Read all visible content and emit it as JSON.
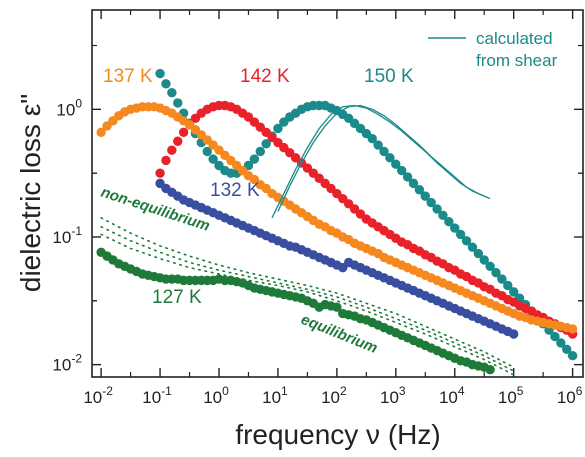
{
  "chart_data": {
    "type": "scatter",
    "title": "",
    "xlabel": "frequency ν (Hz)",
    "ylabel": "dielectric loss ε\"",
    "x_scale": "log",
    "y_scale": "log",
    "xlim": [
      0.007,
      1500000
    ],
    "ylim": [
      0.008,
      6
    ],
    "x_ticks": [
      {
        "value": 0.01,
        "base": "10",
        "exp": "-2"
      },
      {
        "value": 0.1,
        "base": "10",
        "exp": "-1"
      },
      {
        "value": 1,
        "base": "10",
        "exp": "0"
      },
      {
        "value": 10,
        "base": "10",
        "exp": "1"
      },
      {
        "value": 100,
        "base": "10",
        "exp": "2"
      },
      {
        "value": 1000,
        "base": "10",
        "exp": "3"
      },
      {
        "value": 10000,
        "base": "10",
        "exp": "4"
      },
      {
        "value": 100000,
        "base": "10",
        "exp": "5"
      },
      {
        "value": 1000000,
        "base": "10",
        "exp": "6"
      }
    ],
    "y_ticks": [
      {
        "value": 0.01,
        "base": "10",
        "exp": "-2"
      },
      {
        "value": 0.1,
        "base": "10",
        "exp": "-1"
      },
      {
        "value": 1,
        "base": "10",
        "exp": "0"
      }
    ],
    "grid": false,
    "series": [
      {
        "name": "150 K",
        "color": "#1a8a8a",
        "x_log": [
          -1,
          -0.9,
          -0.8,
          -0.7,
          -0.6,
          -0.5,
          -0.4,
          -0.3,
          -0.2,
          -0.1,
          0,
          0.1,
          0.2,
          0.3,
          0.4,
          0.5,
          0.6,
          0.7,
          0.8,
          0.9,
          1,
          1.1,
          1.2,
          1.3,
          1.4,
          1.5,
          1.6,
          1.7,
          1.8,
          1.9,
          2,
          2.1,
          2.2,
          2.3,
          2.4,
          2.5,
          2.6,
          2.7,
          2.8,
          2.9,
          3,
          3.1,
          3.2,
          3.3,
          3.4,
          3.5,
          3.6,
          3.7,
          3.8,
          3.9,
          4,
          4.1,
          4.2,
          4.3,
          4.4,
          4.5,
          4.6,
          4.7,
          4.8,
          4.9,
          5,
          5.1,
          5.2,
          5.3,
          5.4,
          5.5,
          5.6,
          5.7,
          5.8,
          5.9,
          6
        ],
        "y_log": [
          0.28,
          0.2,
          0.13,
          0.05,
          -0.03,
          -0.11,
          -0.19,
          -0.26,
          -0.33,
          -0.39,
          -0.44,
          -0.48,
          -0.5,
          -0.5,
          -0.48,
          -0.44,
          -0.39,
          -0.33,
          -0.27,
          -0.21,
          -0.15,
          -0.1,
          -0.06,
          -0.03,
          0,
          0.02,
          0.03,
          0.03,
          0.03,
          0.01,
          -0.01,
          -0.04,
          -0.07,
          -0.11,
          -0.15,
          -0.19,
          -0.23,
          -0.28,
          -0.33,
          -0.38,
          -0.43,
          -0.48,
          -0.53,
          -0.58,
          -0.63,
          -0.68,
          -0.73,
          -0.78,
          -0.83,
          -0.88,
          -0.93,
          -0.98,
          -1.03,
          -1.08,
          -1.13,
          -1.18,
          -1.23,
          -1.28,
          -1.33,
          -1.38,
          -1.43,
          -1.48,
          -1.53,
          -1.58,
          -1.63,
          -1.68,
          -1.73,
          -1.78,
          -1.83,
          -1.88,
          -1.93
        ]
      },
      {
        "name": "142 K",
        "color": "#e8212b",
        "x_log": [
          -1,
          -0.9,
          -0.8,
          -0.7,
          -0.6,
          -0.5,
          -0.4,
          -0.3,
          -0.2,
          -0.1,
          0,
          0.1,
          0.2,
          0.3,
          0.4,
          0.5,
          0.6,
          0.7,
          0.8,
          0.9,
          1,
          1.1,
          1.2,
          1.3,
          1.4,
          1.5,
          1.6,
          1.7,
          1.8,
          1.9,
          2,
          2.1,
          2.2,
          2.3,
          2.4,
          2.5,
          2.6,
          2.7,
          2.8,
          2.9,
          3,
          3.1,
          3.2,
          3.3,
          3.4,
          3.5,
          3.6,
          3.7,
          3.8,
          3.9,
          4,
          4.1,
          4.2,
          4.3,
          4.4,
          4.5,
          4.6,
          4.7,
          4.8,
          4.9,
          5,
          5.1,
          5.2,
          5.3,
          5.4,
          5.5,
          5.6,
          5.7,
          5.8,
          5.9,
          6
        ],
        "y_log": [
          -0.5,
          -0.4,
          -0.32,
          -0.25,
          -0.18,
          -0.12,
          -0.07,
          -0.03,
          0,
          0.02,
          0.03,
          0.03,
          0.02,
          0,
          -0.03,
          -0.06,
          -0.1,
          -0.14,
          -0.18,
          -0.22,
          -0.26,
          -0.3,
          -0.34,
          -0.38,
          -0.42,
          -0.46,
          -0.5,
          -0.54,
          -0.58,
          -0.62,
          -0.66,
          -0.7,
          -0.74,
          -0.78,
          -0.82,
          -0.86,
          -0.89,
          -0.92,
          -0.95,
          -0.98,
          -1.01,
          -1.04,
          -1.06,
          -1.09,
          -1.11,
          -1.14,
          -1.16,
          -1.19,
          -1.21,
          -1.24,
          -1.26,
          -1.29,
          -1.31,
          -1.34,
          -1.36,
          -1.39,
          -1.41,
          -1.44,
          -1.46,
          -1.49,
          -1.51,
          -1.54,
          -1.56,
          -1.58,
          -1.61,
          -1.63,
          -1.66,
          -1.68,
          -1.71,
          -1.73,
          -1.76
        ]
      },
      {
        "name": "137 K",
        "color": "#f5891f",
        "x_log": [
          -2,
          -1.9,
          -1.8,
          -1.7,
          -1.6,
          -1.5,
          -1.4,
          -1.3,
          -1.2,
          -1.1,
          -1,
          -0.9,
          -0.8,
          -0.7,
          -0.6,
          -0.5,
          -0.4,
          -0.3,
          -0.2,
          -0.1,
          0,
          0.1,
          0.2,
          0.3,
          0.4,
          0.5,
          0.6,
          0.7,
          0.8,
          0.9,
          1,
          1.1,
          1.2,
          1.3,
          1.4,
          1.5,
          1.6,
          1.7,
          1.8,
          1.9,
          2,
          2.1,
          2.2,
          2.3,
          2.4,
          2.5,
          2.6,
          2.7,
          2.8,
          2.9,
          3,
          3.1,
          3.2,
          3.3,
          3.4,
          3.5,
          3.6,
          3.7,
          3.8,
          3.9,
          4,
          4.1,
          4.2,
          4.3,
          4.4,
          4.5,
          4.6,
          4.7,
          4.8,
          4.9,
          5,
          5.1,
          5.2,
          5.3,
          5.4,
          5.5,
          5.6,
          5.7,
          5.8,
          5.9,
          6
        ],
        "y_log": [
          -0.18,
          -0.13,
          -0.09,
          -0.05,
          -0.02,
          0,
          0.01,
          0.02,
          0.02,
          0.02,
          0.01,
          -0.01,
          -0.03,
          -0.06,
          -0.09,
          -0.12,
          -0.16,
          -0.2,
          -0.24,
          -0.28,
          -0.32,
          -0.36,
          -0.4,
          -0.44,
          -0.48,
          -0.52,
          -0.55,
          -0.59,
          -0.62,
          -0.66,
          -0.69,
          -0.72,
          -0.75,
          -0.78,
          -0.81,
          -0.84,
          -0.87,
          -0.9,
          -0.92,
          -0.95,
          -0.97,
          -1,
          -1.02,
          -1.05,
          -1.07,
          -1.09,
          -1.11,
          -1.13,
          -1.16,
          -1.18,
          -1.2,
          -1.22,
          -1.24,
          -1.26,
          -1.28,
          -1.3,
          -1.32,
          -1.34,
          -1.36,
          -1.38,
          -1.4,
          -1.42,
          -1.44,
          -1.46,
          -1.48,
          -1.5,
          -1.52,
          -1.54,
          -1.56,
          -1.58,
          -1.6,
          -1.62,
          -1.63,
          -1.65,
          -1.66,
          -1.67,
          -1.68,
          -1.69,
          -1.7,
          -1.71,
          -1.72
        ]
      },
      {
        "name": "132 K",
        "color": "#3a4ea0",
        "x_log": [
          -1,
          -0.9,
          -0.8,
          -0.7,
          -0.6,
          -0.5,
          -0.4,
          -0.3,
          -0.2,
          -0.1,
          0,
          0.1,
          0.2,
          0.3,
          0.4,
          0.5,
          0.6,
          0.7,
          0.8,
          0.9,
          1,
          1.1,
          1.2,
          1.3,
          1.4,
          1.5,
          1.6,
          1.7,
          1.8,
          1.9,
          2,
          2.1,
          2.2,
          2.3,
          2.4,
          2.5,
          2.6,
          2.7,
          2.8,
          2.9,
          3,
          3.1,
          3.2,
          3.3,
          3.4,
          3.5,
          3.6,
          3.7,
          3.8,
          3.9,
          4,
          4.1,
          4.2,
          4.3,
          4.4,
          4.5,
          4.6,
          4.7,
          4.8,
          4.9,
          5
        ],
        "y_log": [
          -0.58,
          -0.62,
          -0.65,
          -0.68,
          -0.71,
          -0.73,
          -0.75,
          -0.77,
          -0.79,
          -0.81,
          -0.83,
          -0.85,
          -0.87,
          -0.89,
          -0.91,
          -0.93,
          -0.95,
          -0.97,
          -0.99,
          -1.01,
          -1.03,
          -1.05,
          -1.07,
          -1.08,
          -1.1,
          -1.12,
          -1.14,
          -1.16,
          -1.18,
          -1.2,
          -1.22,
          -1.24,
          -1.2,
          -1.22,
          -1.24,
          -1.26,
          -1.28,
          -1.3,
          -1.32,
          -1.34,
          -1.36,
          -1.38,
          -1.4,
          -1.42,
          -1.44,
          -1.46,
          -1.48,
          -1.5,
          -1.52,
          -1.54,
          -1.56,
          -1.58,
          -1.6,
          -1.62,
          -1.64,
          -1.66,
          -1.68,
          -1.7,
          -1.72,
          -1.74,
          -1.76
        ]
      },
      {
        "name": "127 K",
        "color": "#1f7a3a",
        "x_log": [
          -2,
          -1.9,
          -1.8,
          -1.7,
          -1.6,
          -1.5,
          -1.4,
          -1.3,
          -1.2,
          -1.1,
          -1,
          -0.9,
          -0.8,
          -0.7,
          -0.6,
          -0.5,
          -0.4,
          -0.3,
          -0.2,
          -0.1,
          0,
          0.1,
          0.2,
          0.3,
          0.4,
          0.5,
          0.6,
          0.7,
          0.8,
          0.9,
          1,
          1.1,
          1.2,
          1.3,
          1.4,
          1.5,
          1.6,
          1.7,
          1.8,
          1.9,
          2,
          2.1,
          2.2,
          2.3,
          2.4,
          2.5,
          2.6,
          2.7,
          2.8,
          2.9,
          3,
          3.1,
          3.2,
          3.3,
          3.4,
          3.5,
          3.6,
          3.7,
          3.8,
          3.9,
          4,
          4.1,
          4.2,
          4.3,
          4.4,
          4.5,
          4.6
        ],
        "y_log": [
          -1.12,
          -1.15,
          -1.18,
          -1.21,
          -1.23,
          -1.25,
          -1.27,
          -1.29,
          -1.3,
          -1.31,
          -1.32,
          -1.33,
          -1.33,
          -1.33,
          -1.34,
          -1.34,
          -1.34,
          -1.34,
          -1.34,
          -1.34,
          -1.33,
          -1.34,
          -1.34,
          -1.35,
          -1.36,
          -1.38,
          -1.4,
          -1.41,
          -1.42,
          -1.43,
          -1.44,
          -1.45,
          -1.46,
          -1.47,
          -1.48,
          -1.5,
          -1.52,
          -1.55,
          -1.53,
          -1.54,
          -1.55,
          -1.6,
          -1.61,
          -1.62,
          -1.64,
          -1.65,
          -1.67,
          -1.69,
          -1.71,
          -1.73,
          -1.75,
          -1.77,
          -1.79,
          -1.81,
          -1.83,
          -1.85,
          -1.87,
          -1.89,
          -1.91,
          -1.93,
          -1.95,
          -1.97,
          -1.98,
          -2,
          -2.01,
          -2.02,
          -2.04
        ]
      }
    ],
    "calculated_from_shear": {
      "name": "calculated from shear",
      "color": "#1a8a8a",
      "lines": [
        {
          "x_log": [
            0.9,
            1.1,
            1.3,
            1.5,
            1.7,
            1.9,
            2.1,
            2.3,
            2.5,
            2.7,
            2.9,
            3.1,
            3.3,
            3.5,
            3.7,
            3.9,
            4.1,
            4.3,
            4.5,
            4.6
          ],
          "y_log": [
            -0.85,
            -0.66,
            -0.47,
            -0.3,
            -0.15,
            -0.04,
            0.02,
            0.03,
            0.01,
            -0.04,
            -0.1,
            -0.17,
            -0.25,
            -0.33,
            -0.42,
            -0.5,
            -0.58,
            -0.64,
            -0.68,
            -0.7
          ]
        },
        {
          "x_log": [
            1.0,
            1.2,
            1.4,
            1.6,
            1.8,
            2.0,
            2.2,
            2.4,
            2.6,
            2.8,
            3.0,
            3.2,
            3.4,
            3.6,
            3.8,
            4.0,
            4.2,
            4.4,
            4.5
          ],
          "y_log": [
            -0.8,
            -0.6,
            -0.42,
            -0.26,
            -0.13,
            -0.03,
            0.02,
            0.03,
            0.0,
            -0.05,
            -0.12,
            -0.2,
            -0.28,
            -0.37,
            -0.45,
            -0.53,
            -0.61,
            -0.66,
            -0.68
          ]
        }
      ]
    },
    "dotted_guides": {
      "non_equilibrium": {
        "color": "#1f7a3a",
        "lines": [
          {
            "x_log": [
              -2,
              -1.5,
              -1,
              -0.5,
              0,
              0.5,
              1,
              1.5,
              2,
              2.5,
              3,
              3.5,
              4,
              4.5,
              5
            ],
            "y_log": [
              -0.85,
              -0.97,
              -1.07,
              -1.15,
              -1.22,
              -1.28,
              -1.33,
              -1.38,
              -1.44,
              -1.52,
              -1.6,
              -1.7,
              -1.8,
              -1.9,
              -2.02
            ]
          },
          {
            "x_log": [
              -2,
              -1.5,
              -1,
              -0.5,
              0,
              0.5,
              1,
              1.5,
              2,
              2.5,
              3,
              3.5,
              4,
              4.5,
              5
            ],
            "y_log": [
              -0.92,
              -1.03,
              -1.12,
              -1.2,
              -1.26,
              -1.31,
              -1.36,
              -1.41,
              -1.47,
              -1.55,
              -1.64,
              -1.73,
              -1.83,
              -1.93,
              -2.05
            ]
          },
          {
            "x_log": [
              -2,
              -1.5,
              -1,
              -0.5,
              0,
              0.5,
              1,
              1.5,
              2,
              2.5,
              3,
              3.5,
              4,
              4.5,
              5
            ],
            "y_log": [
              -0.98,
              -1.09,
              -1.17,
              -1.24,
              -1.29,
              -1.34,
              -1.38,
              -1.43,
              -1.5,
              -1.58,
              -1.67,
              -1.76,
              -1.86,
              -1.96,
              -2.08
            ]
          }
        ]
      }
    },
    "annotations": {
      "non_equilibrium": "non-equilibrium",
      "equilibrium": "equilibrium"
    },
    "legend": {
      "label_line1": "calculated",
      "label_line2": "from shear",
      "placement": "top-right"
    }
  }
}
